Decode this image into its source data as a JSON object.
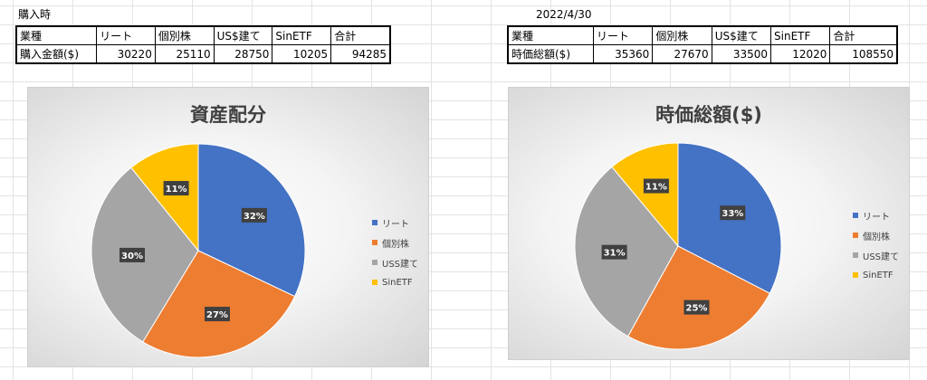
{
  "left": {
    "label": "購入時",
    "table": {
      "headers": [
        "業種",
        "リート",
        "個別株",
        "US$建て",
        "SinETF",
        "合計"
      ],
      "row": [
        "購入金額($)",
        "30220",
        "25110",
        "28750",
        "10205",
        "94285"
      ]
    }
  },
  "right": {
    "label": "2022/4/30",
    "table": {
      "headers": [
        "業種",
        "リート",
        "個別株",
        "US$建て",
        "SinETF",
        "合計"
      ],
      "row": [
        "時価総額($)",
        "35360",
        "27670",
        "33500",
        "12020",
        "108550"
      ]
    }
  },
  "colors": {
    "series": [
      "#4472C4",
      "#ED7D31",
      "#A5A5A5",
      "#FFC000"
    ],
    "label_bg": "#404040",
    "label_text": "#ffffff"
  },
  "chart_data": [
    {
      "type": "pie",
      "title": "資産配分",
      "categories": [
        "リート",
        "個別株",
        "USS建て",
        "SinETF"
      ],
      "values": [
        30220,
        25110,
        28750,
        10205
      ],
      "data_labels": [
        "32%",
        "27%",
        "30%",
        "11%"
      ],
      "legend": [
        "リート",
        "個別株",
        "USS建て",
        "SinETF"
      ],
      "legend_position": "right"
    },
    {
      "type": "pie",
      "title": "時価総額($)",
      "categories": [
        "リート",
        "個別株",
        "USS建て",
        "SinETF"
      ],
      "values": [
        35360,
        27670,
        33500,
        12020
      ],
      "data_labels": [
        "33%",
        "25%",
        "31%",
        "11%"
      ],
      "legend": [
        "リート",
        "個別株",
        "USS建て",
        "SinETF"
      ],
      "legend_position": "right"
    }
  ]
}
